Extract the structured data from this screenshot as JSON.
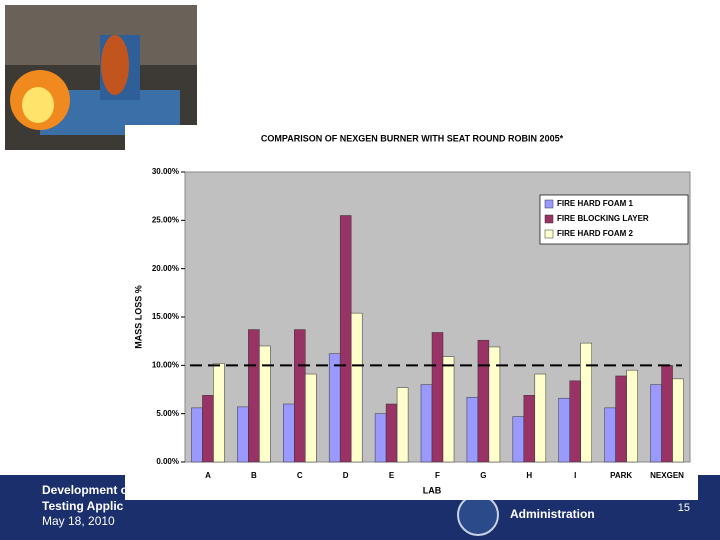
{
  "footer": {
    "line1": "Development o",
    "line2": "Testing Applic",
    "date": "May 18, 2010",
    "agency": "Administration",
    "page": "15"
  },
  "chart_data": {
    "type": "bar",
    "title": "COMPARISON OF NEXGEN BURNER WITH SEAT ROUND ROBIN 2005*",
    "x_label": "LAB",
    "y_label": "MASS LOSS %",
    "categories": [
      "A",
      "B",
      "C",
      "D",
      "E",
      "F",
      "G",
      "H",
      "I",
      "PARK",
      "NEXGEN"
    ],
    "series": [
      {
        "name": "FIRE HARD FOAM 1",
        "color": "#9999ff",
        "values": [
          5.6,
          5.7,
          6.0,
          11.2,
          5.0,
          8.0,
          6.7,
          4.7,
          6.6,
          5.6,
          8.0
        ]
      },
      {
        "name": "FIRE BLOCKING LAYER",
        "color": "#993366",
        "values": [
          6.9,
          13.7,
          13.7,
          25.5,
          6.0,
          13.4,
          12.6,
          6.9,
          8.4,
          8.9,
          10.0
        ]
      },
      {
        "name": "FIRE HARD FOAM 2",
        "color": "#ffffcc",
        "values": [
          10.2,
          12.0,
          9.1,
          15.4,
          7.7,
          10.9,
          11.9,
          9.1,
          12.3,
          9.5,
          8.6
        ]
      }
    ],
    "reference_line": 10,
    "ylim": [
      0,
      30
    ],
    "yticks": [
      {
        "value": 0,
        "label": "0.00%"
      },
      {
        "value": 5,
        "label": "5.00%"
      },
      {
        "value": 10,
        "label": "10.00%"
      },
      {
        "value": 15,
        "label": "15.00%"
      },
      {
        "value": 20,
        "label": "20.00%"
      },
      {
        "value": 25,
        "label": "25.00%"
      },
      {
        "value": 30,
        "label": "30.00%"
      }
    ],
    "legend": "upper right",
    "plot_color": "#c0c0c0"
  }
}
